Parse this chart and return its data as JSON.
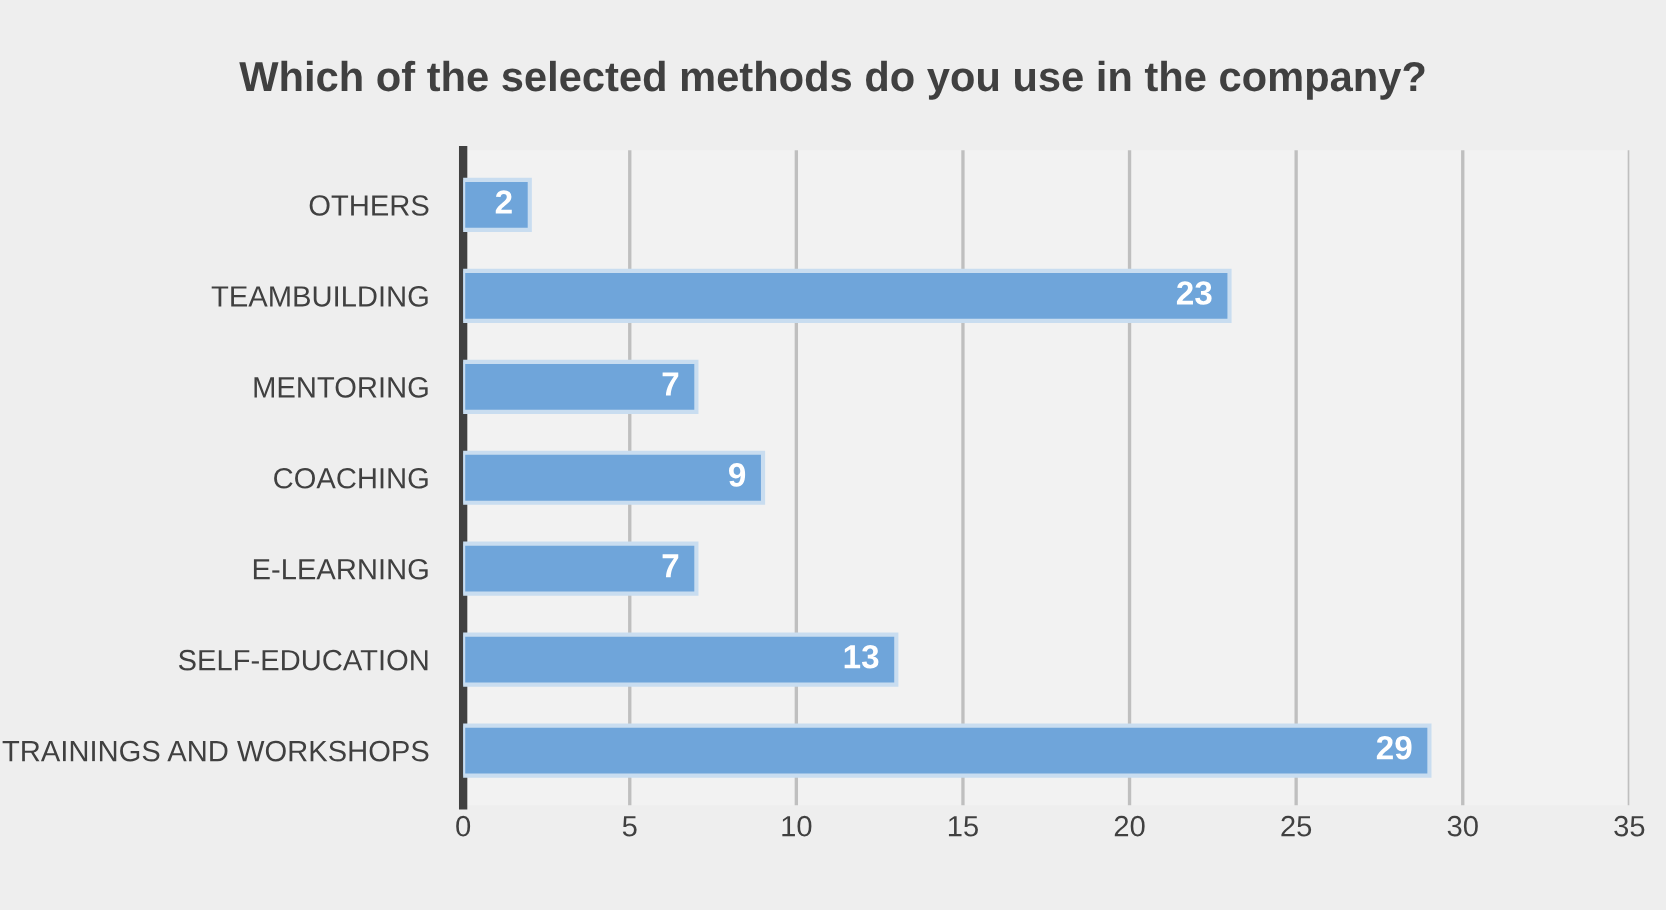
{
  "chart_data": {
    "type": "bar",
    "orientation": "horizontal",
    "title": "Which of the selected methods do you use in the company?",
    "categories": [
      "OTHERS",
      "TEAMBUILDING",
      "MENTORING",
      "COACHING",
      "E-LEARNING",
      "SELF-EDUCATION",
      "TRAININGS AND WORKSHOPS"
    ],
    "values": [
      2,
      23,
      7,
      9,
      7,
      13,
      29
    ],
    "color": "#6fa5da",
    "xlim": [
      0,
      35
    ],
    "xticks": [
      0,
      5,
      10,
      15,
      20,
      25,
      30,
      35
    ],
    "grid": "x",
    "data_labels": true,
    "legend": false
  }
}
